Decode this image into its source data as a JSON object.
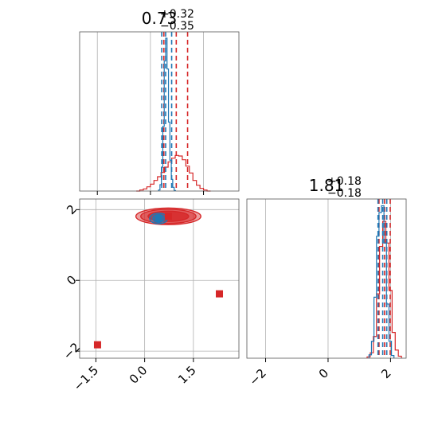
{
  "colors": {
    "red": "#d62728",
    "blue": "#1f77b4",
    "grid": "#b0b0b0",
    "frame": "#000000"
  },
  "chart_data": [
    {
      "type": "histogram",
      "panel": "top-left",
      "param": "x",
      "title": {
        "main": "0.73",
        "sup": "+0.32",
        "sub": "−0.35"
      },
      "xlim": [
        -2.0,
        2.5
      ],
      "grid": true,
      "series": [
        {
          "color": "red",
          "quantiles": [
            0.38,
            0.73,
            1.05
          ],
          "hist": [
            [
              -0.35,
              0.0
            ],
            [
              -0.25,
              0.02
            ],
            [
              -0.15,
              0.04
            ],
            [
              -0.05,
              0.08
            ],
            [
              0.05,
              0.13
            ],
            [
              0.15,
              0.2
            ],
            [
              0.25,
              0.27
            ],
            [
              0.35,
              0.35
            ],
            [
              0.45,
              0.45
            ],
            [
              0.55,
              0.55
            ],
            [
              0.65,
              0.62
            ],
            [
              0.75,
              0.67
            ],
            [
              0.85,
              0.66
            ],
            [
              0.95,
              0.59
            ],
            [
              1.05,
              0.47
            ],
            [
              1.15,
              0.34
            ],
            [
              1.25,
              0.2
            ],
            [
              1.35,
              0.11
            ],
            [
              1.45,
              0.05
            ],
            [
              1.55,
              0.02
            ],
            [
              1.65,
              0.0
            ]
          ]
        },
        {
          "color": "blue",
          "quantiles": [
            0.32,
            0.43,
            0.6
          ],
          "hist": [
            [
              0.25,
              0.02
            ],
            [
              0.29,
              0.12
            ],
            [
              0.33,
              0.45
            ],
            [
              0.37,
              1.22
            ],
            [
              0.41,
              2.45
            ],
            [
              0.45,
              2.88
            ],
            [
              0.49,
              2.3
            ],
            [
              0.53,
              1.3
            ],
            [
              0.57,
              0.58
            ],
            [
              0.61,
              0.22
            ],
            [
              0.65,
              0.07
            ],
            [
              0.69,
              0.01
            ]
          ]
        }
      ]
    },
    {
      "type": "histogram",
      "panel": "bottom-right",
      "param": "y",
      "title": {
        "main": "1.81",
        "sup": "+0.18",
        "sub": "−0.18"
      },
      "xlim": [
        -2.6,
        2.5
      ],
      "xticks": [
        "−2",
        "0",
        "2"
      ],
      "grid": true,
      "series": [
        {
          "color": "red",
          "quantiles": [
            1.63,
            1.81,
            1.99
          ],
          "hist": [
            [
              1.3,
              0.02
            ],
            [
              1.4,
              0.08
            ],
            [
              1.5,
              0.32
            ],
            [
              1.6,
              0.95
            ],
            [
              1.7,
              1.65
            ],
            [
              1.8,
              2.02
            ],
            [
              1.9,
              1.7
            ],
            [
              2.0,
              1.0
            ],
            [
              2.1,
              0.38
            ],
            [
              2.2,
              0.12
            ],
            [
              2.3,
              0.03
            ]
          ]
        },
        {
          "color": "blue",
          "quantiles": [
            1.6,
            1.75,
            1.88
          ],
          "hist": [
            [
              1.35,
              0.05
            ],
            [
              1.43,
              0.25
            ],
            [
              1.51,
              0.9
            ],
            [
              1.59,
              1.8
            ],
            [
              1.67,
              2.15
            ],
            [
              1.75,
              2.25
            ],
            [
              1.83,
              1.7
            ],
            [
              1.91,
              0.8
            ],
            [
              1.99,
              0.25
            ],
            [
              2.07,
              0.04
            ]
          ]
        }
      ]
    },
    {
      "type": "contour",
      "panel": "bottom-left",
      "xlim": [
        -2.0,
        2.9
      ],
      "ylim": [
        -2.2,
        2.3
      ],
      "xticks": [
        "−1.5",
        "0.0",
        "1.5"
      ],
      "yticks": [
        "2",
        "0",
        "−2"
      ],
      "grid": true,
      "series": [
        {
          "color": "red",
          "center": [
            0.73,
            1.81
          ],
          "levels": [
            {
              "rx": 2.0,
              "ry": 0.47
            },
            {
              "rx": 1.7,
              "ry": 0.4
            },
            {
              "rx": 1.25,
              "ry": 0.29
            }
          ]
        },
        {
          "color": "blue",
          "center": [
            0.43,
            1.75
          ],
          "levels": [
            {
              "rx": 0.55,
              "ry": 0.3
            },
            {
              "rx": 0.35,
              "ry": 0.22
            }
          ]
        }
      ],
      "markers": [
        {
          "color": "red",
          "x": -1.45,
          "y": -1.82
        },
        {
          "color": "red",
          "x": 2.3,
          "y": -0.38
        },
        {
          "color": "red",
          "x": 0.73,
          "y": 1.81
        },
        {
          "color": "blue",
          "x": 0.43,
          "y": 1.75
        }
      ]
    }
  ]
}
